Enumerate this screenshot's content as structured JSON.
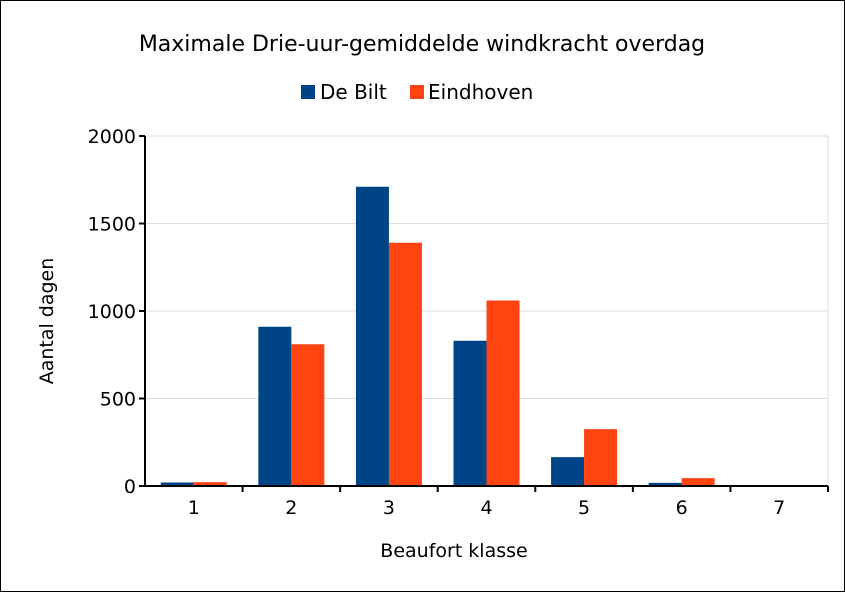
{
  "chart_data": {
    "type": "bar",
    "title": "Maximale Drie-uur-gemiddelde windkracht overdag",
    "xlabel": "Beaufort klasse",
    "ylabel": "Aantal dagen",
    "categories": [
      "1",
      "2",
      "3",
      "4",
      "5",
      "6",
      "7"
    ],
    "series": [
      {
        "name": "De Bilt",
        "color": "#004488",
        "values": [
          20,
          910,
          1710,
          830,
          165,
          18,
          2
        ]
      },
      {
        "name": "Eindhoven",
        "color": "#ff4411",
        "values": [
          22,
          810,
          1390,
          1060,
          325,
          45,
          5
        ]
      }
    ],
    "ylim": [
      0,
      2000
    ],
    "yticks": [
      "0",
      "500",
      "1000",
      "1500",
      "2000"
    ],
    "grid": true,
    "legend": "top-center"
  }
}
